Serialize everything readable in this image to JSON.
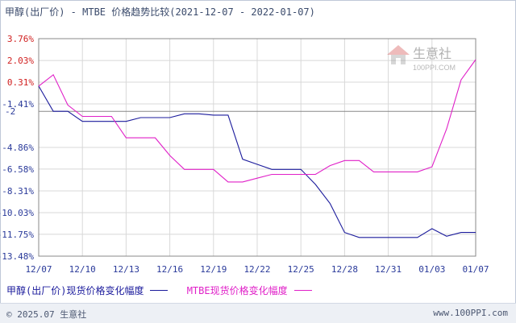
{
  "title": "甲醇(出厂价) - MTBE 价格趋势比较(2021-12-07 - 2022-01-07)",
  "footer": {
    "copyright": "© 2025.07 生意社",
    "url": "www.100PPI.com"
  },
  "watermark": {
    "name": "生意社",
    "url": "100PPI.COM"
  },
  "colors": {
    "series1": "#1b1b9c",
    "series2": "#e020c8",
    "grid": "#d8d8d8",
    "ref": "#888888",
    "tick_neg": "#2a3a9a",
    "tick_pos": "#d02020"
  },
  "chart_data": {
    "type": "line",
    "title": "甲醇(出厂价) - MTBE 价格趋势比较(2021-12-07 - 2022-01-07)",
    "y_ticks": [
      "3.76%",
      "2.03%",
      "0.31%",
      "-1.41%",
      "-4.86%",
      "-6.58%",
      "-8.31%",
      "-10.03%",
      "-11.75%",
      "-13.48%"
    ],
    "y_tick_values": [
      3.76,
      2.03,
      0.31,
      -1.41,
      -4.86,
      -6.58,
      -8.31,
      -10.03,
      -11.75,
      -13.48
    ],
    "reference_line": {
      "value": -2,
      "label": "-2"
    },
    "x_ticks": [
      "12/07",
      "12/10",
      "12/13",
      "12/16",
      "12/19",
      "12/22",
      "12/25",
      "12/28",
      "12/31",
      "01/03",
      "01/07"
    ],
    "x_tick_days": [
      0,
      3,
      6,
      9,
      12,
      15,
      18,
      21,
      24,
      27,
      30
    ],
    "ylim": [
      -13.48,
      3.76
    ],
    "xlim": [
      0,
      30
    ],
    "grid": true,
    "series": [
      {
        "name": "甲醇(出厂价)现货价格变化幅度",
        "x": [
          0,
          1,
          2,
          3,
          4,
          5,
          6,
          7,
          8,
          9,
          10,
          11,
          12,
          13,
          14,
          15,
          16,
          17,
          18,
          19,
          20,
          21,
          22,
          23,
          24,
          25,
          26,
          27,
          28,
          29,
          30
        ],
        "y": [
          0.0,
          -2.0,
          -2.0,
          -2.8,
          -2.8,
          -2.8,
          -2.8,
          -2.5,
          -2.5,
          -2.5,
          -2.2,
          -2.2,
          -2.3,
          -2.3,
          -5.8,
          -6.2,
          -6.6,
          -6.6,
          -6.6,
          -7.8,
          -9.3,
          -11.6,
          -12.0,
          -12.0,
          -12.0,
          -12.0,
          -12.0,
          -11.3,
          -11.9,
          -11.6,
          -11.6
        ]
      },
      {
        "name": "MTBE现货价格变化幅度",
        "x": [
          0,
          1,
          2,
          3,
          4,
          5,
          6,
          7,
          8,
          9,
          10,
          11,
          12,
          13,
          14,
          15,
          16,
          17,
          18,
          19,
          20,
          21,
          22,
          23,
          24,
          25,
          26,
          27,
          28,
          29,
          30
        ],
        "y": [
          0.0,
          0.9,
          -1.5,
          -2.4,
          -2.4,
          -2.4,
          -4.1,
          -4.1,
          -4.1,
          -5.5,
          -6.6,
          -6.6,
          -6.6,
          -7.6,
          -7.6,
          -7.3,
          -7.0,
          -7.0,
          -7.0,
          -7.0,
          -6.3,
          -5.9,
          -5.9,
          -6.8,
          -6.8,
          -6.8,
          -6.8,
          -6.4,
          -3.4,
          0.5,
          2.1
        ]
      }
    ]
  }
}
